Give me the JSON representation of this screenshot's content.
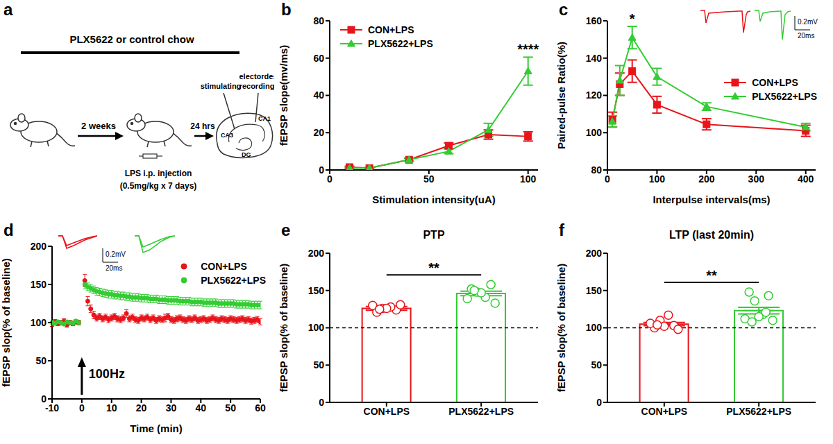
{
  "diagram": {
    "panel": "a",
    "texts": {
      "chow": "PLX5622 or control chow",
      "duration": "2 weeks",
      "wait": "24 hrs",
      "injection": "LPS i.p. injection",
      "dose": "(0.5mg/kg x 7 days)",
      "stimulating": "stimulating",
      "electrodes": "electordes",
      "recording": "recording",
      "ca3": "CA3",
      "ca1": "CA1",
      "dg": "DG"
    }
  },
  "chart_data": [
    {
      "panel": "b",
      "type": "line",
      "x_label": "Stimulation intensity(uA)",
      "y_label": "fEPSP slope(mv/ms)",
      "x": [
        10,
        20,
        40,
        60,
        80,
        100
      ],
      "xlim": [
        0,
        105
      ],
      "xticks": [
        0,
        50,
        100
      ],
      "ylim": [
        0,
        80
      ],
      "yticks": [
        0,
        20,
        40,
        60,
        80
      ],
      "legend": "upper left",
      "series": [
        {
          "name": "CON+LPS",
          "color": "#e8141a",
          "marker": "square",
          "line_style": "solid",
          "values": [
            1.5,
            1,
            5.5,
            13,
            19,
            18
          ],
          "errors": [
            0.5,
            0.3,
            0.8,
            1.5,
            2.5,
            2.5
          ]
        },
        {
          "name": "PLX5622+LPS",
          "color": "#33cc33",
          "marker": "triangle",
          "line_style": "solid",
          "values": [
            1,
            1,
            5.5,
            10,
            21.5,
            53
          ],
          "errors": [
            0.4,
            0.3,
            0.8,
            1.2,
            3.5,
            7.5
          ]
        }
      ],
      "annotations": [
        {
          "x": 100,
          "text": "****"
        }
      ]
    },
    {
      "panel": "c",
      "type": "line",
      "x_label": "Interpulse intervals(ms)",
      "y_label": "Paired-pulse Ratio(%)",
      "x": [
        10,
        25,
        50,
        100,
        200,
        400
      ],
      "xlim": [
        0,
        420
      ],
      "xticks": [
        0,
        100,
        200,
        300,
        400
      ],
      "ylim": [
        80,
        160
      ],
      "yticks": [
        80,
        100,
        120,
        140,
        160
      ],
      "legend": "right",
      "series": [
        {
          "name": "CON+LPS",
          "color": "#e8141a",
          "marker": "square",
          "line_style": "solid",
          "values": [
            107,
            126,
            133,
            115,
            104.5,
            101
          ],
          "errors": [
            4,
            6,
            6,
            4.5,
            3,
            3
          ]
        },
        {
          "name": "PLX5622+LPS",
          "color": "#33cc33",
          "marker": "triangle",
          "line_style": "solid",
          "values": [
            106,
            128,
            151,
            130,
            114,
            103
          ],
          "errors": [
            3,
            8,
            6,
            4.5,
            2,
            2
          ]
        }
      ],
      "annotations": [
        {
          "x": 50,
          "text": "*"
        }
      ],
      "scale_bar": {
        "y": "0.2mV",
        "x": "20ms"
      }
    },
    {
      "panel": "d",
      "type": "scatter",
      "x_label": "Time (min)",
      "y_label": "fEPSP slop(% of baseline)",
      "x": [
        -10,
        -9,
        -8,
        -7,
        -6,
        -5,
        -4,
        -3,
        -2,
        -1,
        1,
        2,
        3,
        4,
        5,
        6,
        7,
        8,
        9,
        10,
        11,
        12,
        13,
        14,
        15,
        16,
        17,
        18,
        19,
        20,
        21,
        22,
        23,
        24,
        25,
        26,
        27,
        28,
        29,
        30,
        31,
        32,
        33,
        34,
        35,
        36,
        37,
        38,
        39,
        40,
        41,
        42,
        43,
        44,
        45,
        46,
        47,
        48,
        49,
        50,
        51,
        52,
        53,
        54,
        55,
        56,
        57,
        58,
        59,
        60
      ],
      "xlim": [
        -10,
        60
      ],
      "xticks": [
        -10,
        0,
        10,
        20,
        30,
        40,
        50,
        60
      ],
      "ylim": [
        0,
        200
      ],
      "yticks": [
        0,
        50,
        100,
        150,
        200
      ],
      "legend": "upper right",
      "series": [
        {
          "name": "CON+LPS",
          "color": "#e8141a",
          "marker": "circle",
          "line_style": "none",
          "values": [
            98,
            101,
            99,
            100,
            102,
            97,
            100,
            99,
            101,
            100,
            155,
            128,
            118,
            110,
            106,
            108,
            105,
            107,
            104,
            106,
            108,
            105,
            104,
            106,
            112,
            105,
            107,
            104,
            103,
            106,
            105,
            107,
            104,
            106,
            103,
            105,
            104,
            106,
            108,
            104,
            103,
            105,
            106,
            104,
            103,
            105,
            104,
            106,
            103,
            104,
            105,
            103,
            104,
            106,
            104,
            103,
            105,
            104,
            103,
            105,
            104,
            103,
            104,
            105,
            103,
            104,
            102,
            103,
            104,
            101
          ],
          "errors": [
            3,
            3,
            3,
            3,
            3,
            3,
            3,
            3,
            3,
            3,
            8,
            6,
            5,
            5,
            4,
            4,
            4,
            4,
            4,
            4,
            4,
            4,
            4,
            4,
            5,
            4,
            4,
            4,
            4,
            4,
            4,
            4,
            4,
            4,
            4,
            4,
            4,
            5,
            4,
            4,
            4,
            4,
            4,
            4,
            4,
            4,
            4,
            4,
            4,
            4,
            4,
            4,
            4,
            4,
            4,
            4,
            4,
            4,
            4,
            4,
            4,
            4,
            4,
            4,
            4,
            4,
            4,
            4,
            4,
            4
          ]
        },
        {
          "name": "PLX5622+LPS",
          "color": "#33cc33",
          "marker": "circle",
          "line_style": "none",
          "values": [
            100,
            99,
            101,
            100,
            98,
            101,
            100,
            99,
            102,
            100,
            150,
            147,
            145,
            143,
            141,
            140,
            139,
            138,
            137,
            137,
            136,
            136,
            135,
            135,
            134,
            134,
            133,
            133,
            133,
            132,
            132,
            132,
            131,
            131,
            131,
            130,
            130,
            130,
            129,
            129,
            129,
            129,
            128,
            128,
            128,
            128,
            127,
            127,
            127,
            127,
            126,
            126,
            126,
            126,
            126,
            125,
            125,
            125,
            125,
            125,
            125,
            124,
            124,
            124,
            124,
            124,
            123,
            123,
            123,
            123
          ],
          "errors": [
            2,
            2,
            2,
            2,
            2,
            2,
            2,
            2,
            2,
            2,
            6,
            5,
            5,
            5,
            5,
            5,
            5,
            5,
            5,
            5,
            5,
            5,
            5,
            5,
            5,
            5,
            5,
            5,
            5,
            5,
            5,
            5,
            5,
            5,
            5,
            5,
            5,
            5,
            5,
            5,
            5,
            5,
            5,
            5,
            5,
            5,
            5,
            5,
            5,
            5,
            5,
            5,
            5,
            5,
            5,
            5,
            5,
            5,
            5,
            5,
            5,
            5,
            5,
            5,
            5,
            5,
            5,
            5,
            5,
            5
          ]
        }
      ],
      "stimulus": {
        "x": 0,
        "text": "100Hz"
      },
      "scale_bar": {
        "y": "0.2mV",
        "x": "20ms"
      }
    },
    {
      "panel": "e",
      "type": "bar",
      "title": "PTP",
      "y_label": "fEPSP slop(% of baseline)",
      "categories": [
        "CON+LPS",
        "PLX5622+LPS"
      ],
      "values": [
        126,
        146
      ],
      "errors": [
        2.5,
        3
      ],
      "colors": [
        "#e8141a",
        "#33cc33"
      ],
      "points": [
        [
          121,
          124,
          126,
          128,
          130,
          131,
          126,
          125
        ],
        [
          152,
          158,
          148,
          141,
          139,
          133,
          147,
          150
        ]
      ],
      "hline": 100,
      "ylim": [
        0,
        200
      ],
      "yticks": [
        0,
        50,
        100,
        150,
        200
      ],
      "annotations": [
        {
          "text": "**"
        }
      ]
    },
    {
      "panel": "f",
      "type": "bar",
      "title": "LTP (last 20min)",
      "y_label": "fEPSP slop(% of baseline)",
      "categories": [
        "CON+LPS",
        "PLX5622+LPS"
      ],
      "values": [
        105,
        123
      ],
      "errors": [
        2.2,
        4.5
      ],
      "colors": [
        "#e8141a",
        "#33cc33"
      ],
      "points": [
        [
          100,
          103,
          110,
          117,
          106,
          98,
          102,
          104
        ],
        [
          148,
          143,
          136,
          118,
          112,
          110,
          115,
          108,
          121
        ]
      ],
      "hline": 100,
      "ylim": [
        0,
        200
      ],
      "yticks": [
        0,
        50,
        100,
        150,
        200
      ],
      "annotations": [
        {
          "text": "**"
        }
      ]
    }
  ]
}
